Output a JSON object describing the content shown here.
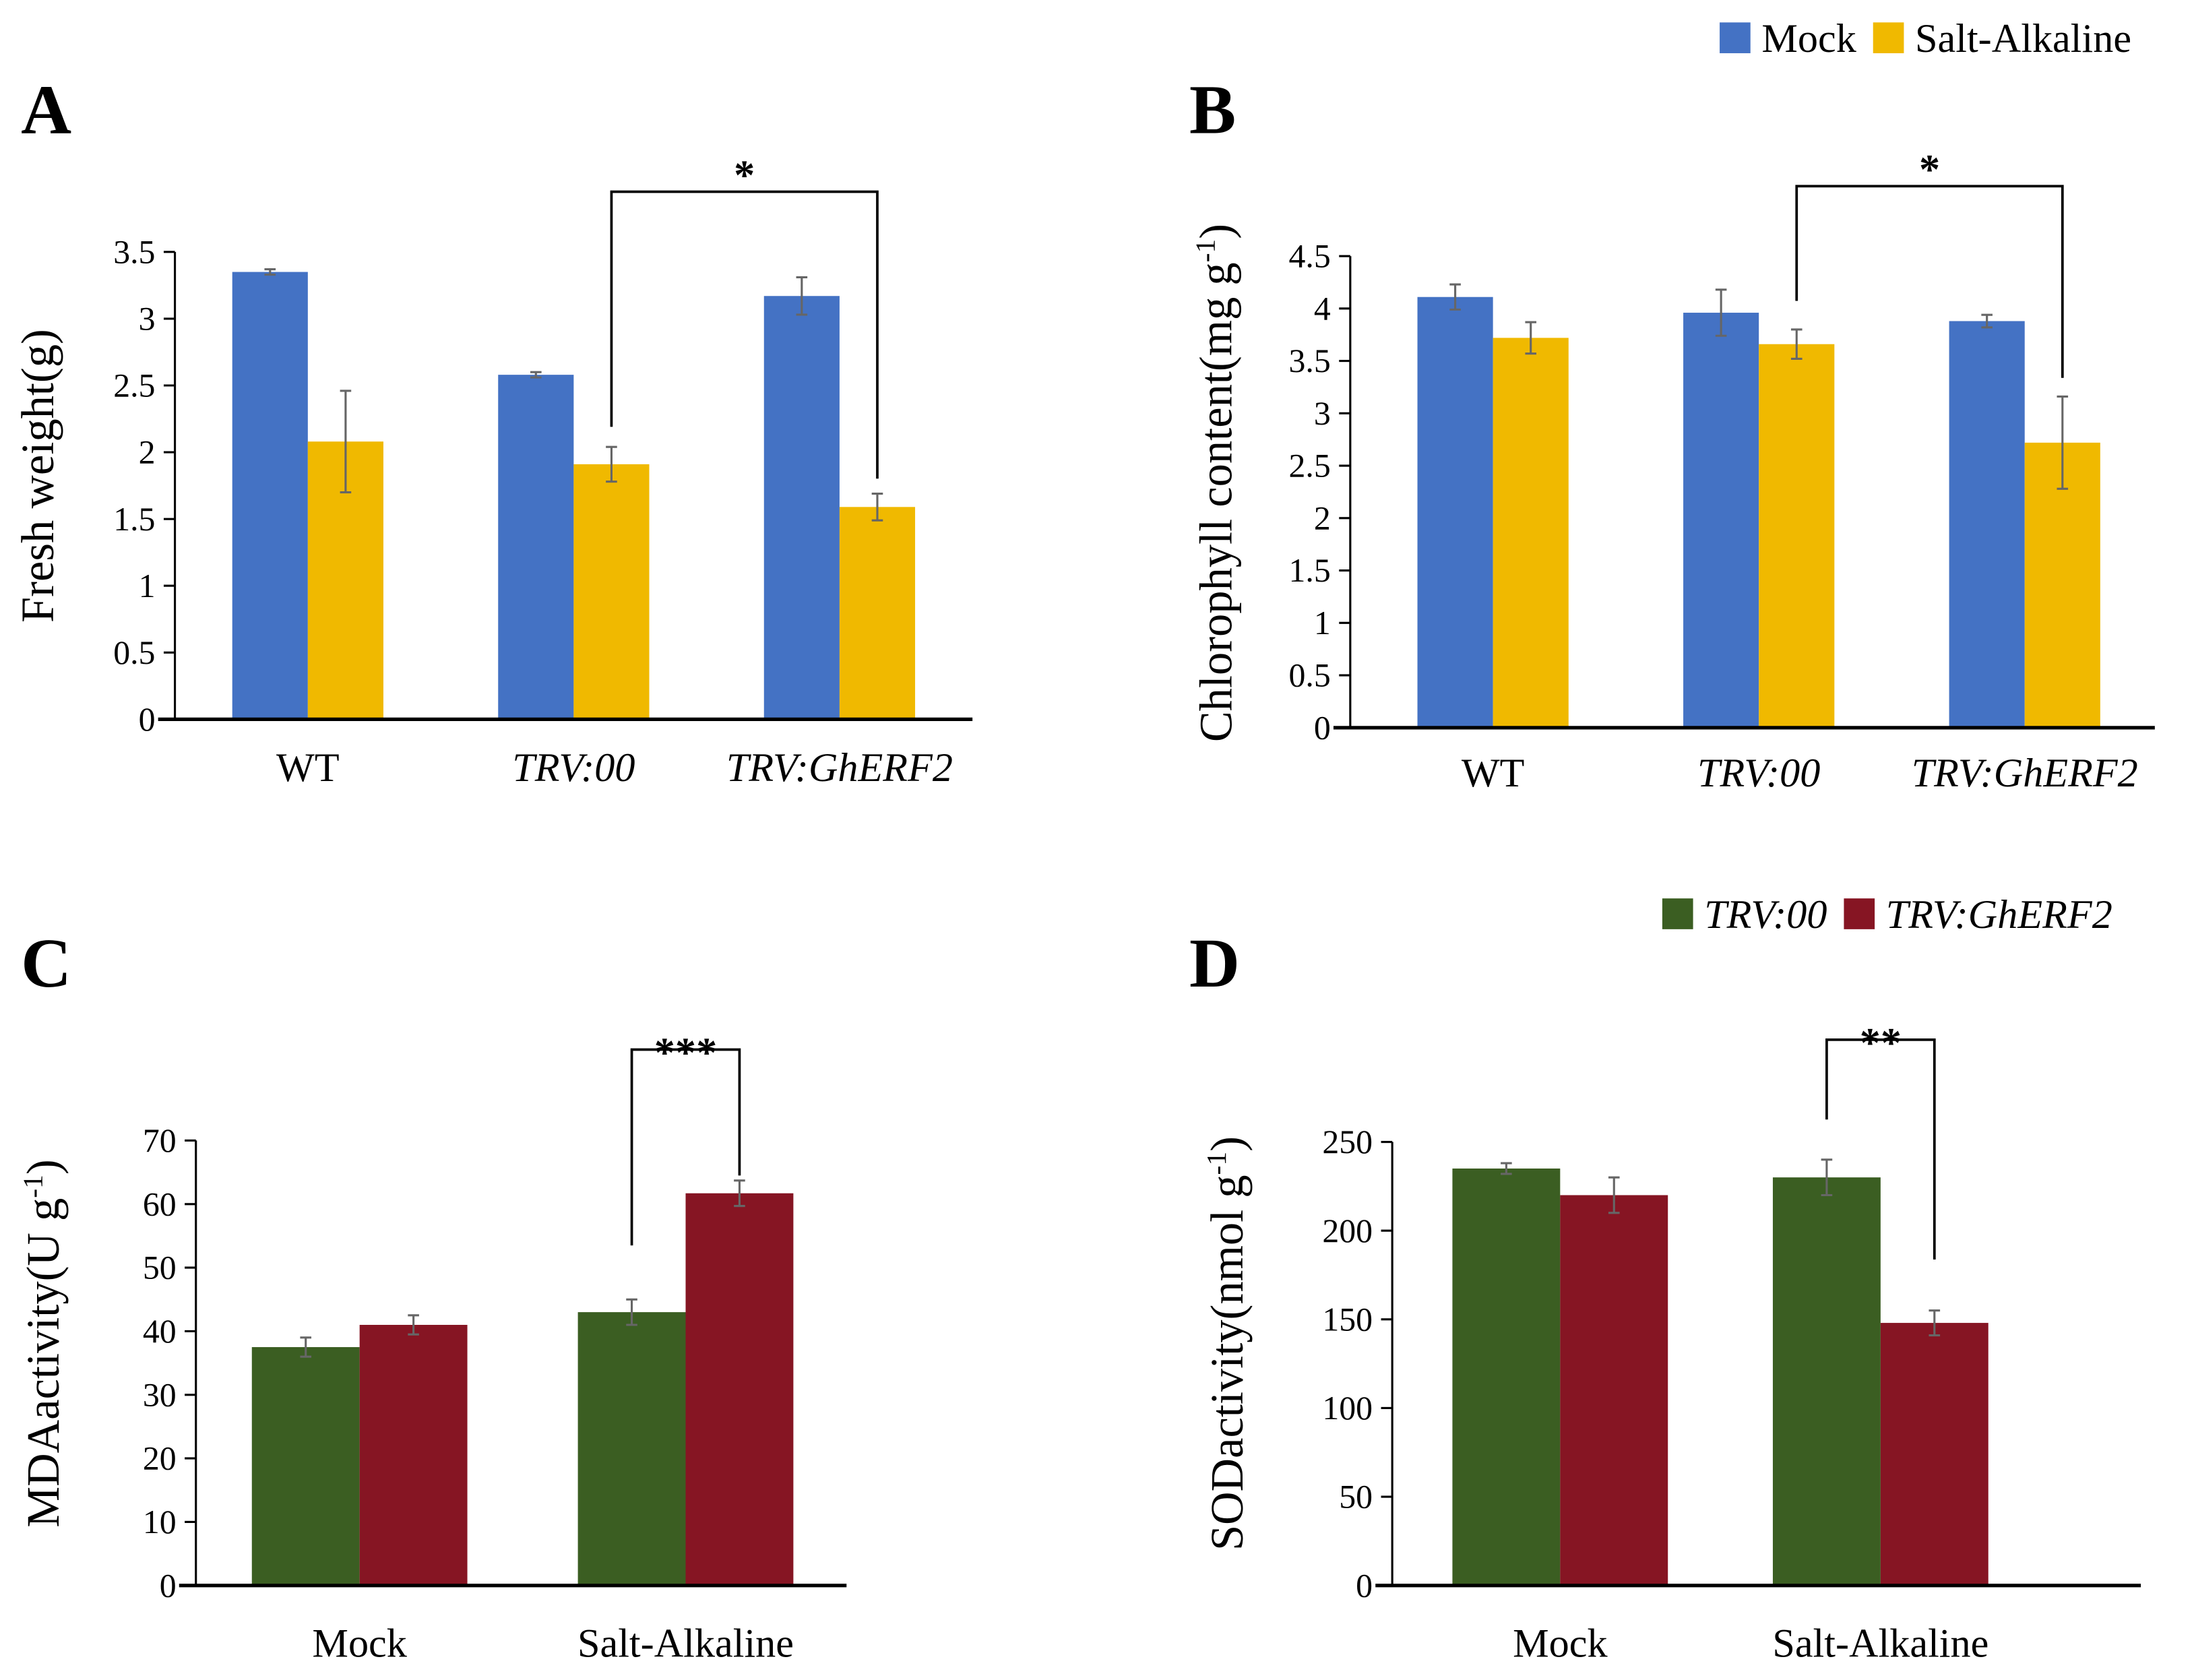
{
  "legends": {
    "top": {
      "items": [
        {
          "label": "Mock",
          "color": "#4472C4"
        },
        {
          "label": "Salt-Alkaline",
          "color": "#F0B900"
        }
      ]
    },
    "bottom": {
      "items": [
        {
          "label": "TRV:00",
          "color": "#3B5E22"
        },
        {
          "label": "TRV:GhERF2",
          "color": "#861523"
        }
      ]
    }
  },
  "chart_data": [
    {
      "panel": "A",
      "type": "bar",
      "categories": [
        "WT",
        "TRV:00",
        "TRV:GhERF2"
      ],
      "italic_categories": [
        false,
        true,
        true
      ],
      "ylabel": "Fresh weight(g)",
      "ylabel_sup": "",
      "ylabel_end": "",
      "ylim": [
        0,
        3.5
      ],
      "yticks": [
        0,
        0.5,
        1,
        1.5,
        2,
        2.5,
        3,
        3.5
      ],
      "series": [
        {
          "name": "Mock",
          "values": [
            3.35,
            2.58,
            3.17
          ],
          "errors": [
            0.02,
            0.02,
            0.14
          ]
        },
        {
          "name": "Salt-Alkaline",
          "values": [
            2.08,
            1.91,
            1.59
          ],
          "errors": [
            0.38,
            0.13,
            0.1
          ]
        }
      ],
      "significance": {
        "label": "*",
        "from": [
          1,
          1
        ],
        "to": [
          2,
          1
        ]
      }
    },
    {
      "panel": "B",
      "type": "bar",
      "categories": [
        "WT",
        "TRV:00",
        "TRV:GhERF2"
      ],
      "italic_categories": [
        false,
        true,
        true
      ],
      "ylabel": "Chlorophyll content(mg g",
      "ylabel_sup": "-1",
      "ylabel_end": ")",
      "ylim": [
        0,
        4.5
      ],
      "yticks": [
        0,
        0.5,
        1,
        1.5,
        2,
        2.5,
        3,
        3.5,
        4,
        4.5
      ],
      "series": [
        {
          "name": "Mock",
          "values": [
            4.11,
            3.96,
            3.88
          ],
          "errors": [
            0.12,
            0.22,
            0.06
          ]
        },
        {
          "name": "Salt-Alkaline",
          "values": [
            3.72,
            3.66,
            2.72
          ],
          "errors": [
            0.15,
            0.14,
            0.44
          ]
        }
      ],
      "significance": {
        "label": "*",
        "from": [
          1,
          1
        ],
        "to": [
          2,
          1
        ]
      }
    },
    {
      "panel": "C",
      "type": "bar",
      "categories": [
        "Mock",
        "Salt-Alkaline"
      ],
      "italic_categories": [
        false,
        false
      ],
      "ylabel": "MDAactivity(U g",
      "ylabel_sup": "-1",
      "ylabel_end": ")",
      "ylim": [
        0,
        70
      ],
      "yticks": [
        0,
        10,
        20,
        30,
        40,
        50,
        60,
        70
      ],
      "series": [
        {
          "name": "TRV:00",
          "values": [
            37.5,
            43.0
          ],
          "errors": [
            1.5,
            2.0
          ]
        },
        {
          "name": "TRV:GhERF2",
          "values": [
            41.0,
            61.7
          ],
          "errors": [
            1.5,
            2.0
          ]
        }
      ],
      "significance": {
        "label": "***",
        "from": [
          1,
          0
        ],
        "to": [
          1,
          1
        ]
      }
    },
    {
      "panel": "D",
      "type": "bar",
      "categories": [
        "Mock",
        "Salt-Alkaline"
      ],
      "italic_categories": [
        false,
        false
      ],
      "ylabel": "SODactivity(nmol g",
      "ylabel_sup": "-1",
      "ylabel_end": ")",
      "ylim": [
        0,
        250
      ],
      "yticks": [
        0,
        50,
        100,
        150,
        200,
        250
      ],
      "series": [
        {
          "name": "TRV:00",
          "values": [
            235,
            230
          ],
          "errors": [
            3,
            10
          ]
        },
        {
          "name": "TRV:GhERF2",
          "values": [
            220,
            148
          ],
          "errors": [
            10,
            7
          ]
        }
      ],
      "significance": {
        "label": "**",
        "from": [
          1,
          0
        ],
        "to": [
          1,
          1
        ]
      }
    }
  ]
}
